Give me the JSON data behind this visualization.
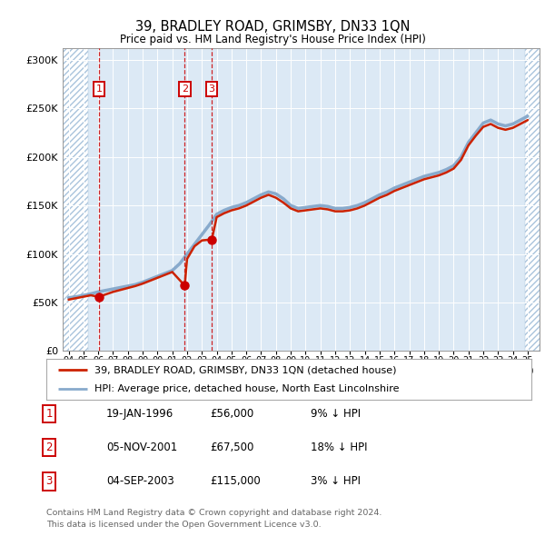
{
  "title": "39, BRADLEY ROAD, GRIMSBY, DN33 1QN",
  "subtitle": "Price paid vs. HM Land Registry's House Price Index (HPI)",
  "ytick_values": [
    0,
    50000,
    100000,
    150000,
    200000,
    250000,
    300000
  ],
  "ylim": [
    0,
    312000
  ],
  "xlim_start": 1993.6,
  "xlim_end": 2025.8,
  "hatch_left_end": 1995.3,
  "hatch_right_start": 2024.8,
  "background_color": "#dce9f5",
  "hatch_color": "#aac4dc",
  "sale_color": "#cc0000",
  "hpi_line_color": "#88aacc",
  "price_line_color": "#cc2200",
  "legend_label_price": "39, BRADLEY ROAD, GRIMSBY, DN33 1QN (detached house)",
  "legend_label_hpi": "HPI: Average price, detached house, North East Lincolnshire",
  "sales": [
    {
      "num": 1,
      "year": 1996.05,
      "price": 56000
    },
    {
      "num": 2,
      "year": 2001.84,
      "price": 67500
    },
    {
      "num": 3,
      "year": 2003.67,
      "price": 115000
    }
  ],
  "table_rows": [
    {
      "num": 1,
      "date": "19-JAN-1996",
      "price": "£56,000",
      "pct": "9% ↓ HPI"
    },
    {
      "num": 2,
      "date": "05-NOV-2001",
      "price": "£67,500",
      "pct": "18% ↓ HPI"
    },
    {
      "num": 3,
      "date": "04-SEP-2003",
      "price": "£115,000",
      "pct": "3% ↓ HPI"
    }
  ],
  "footer_line1": "Contains HM Land Registry data © Crown copyright and database right 2024.",
  "footer_line2": "This data is licensed under the Open Government Licence v3.0.",
  "hpi_years": [
    1994,
    1994.5,
    1995,
    1995.5,
    1996,
    1996.5,
    1997,
    1997.5,
    1998,
    1998.5,
    1999,
    1999.5,
    2000,
    2000.5,
    2001,
    2001.5,
    2002,
    2002.5,
    2003,
    2003.5,
    2004,
    2004.5,
    2005,
    2005.5,
    2006,
    2006.5,
    2007,
    2007.5,
    2008,
    2008.5,
    2009,
    2009.5,
    2010,
    2010.5,
    2011,
    2011.5,
    2012,
    2012.5,
    2013,
    2013.5,
    2014,
    2014.5,
    2015,
    2015.5,
    2016,
    2016.5,
    2017,
    2017.5,
    2018,
    2018.5,
    2019,
    2019.5,
    2020,
    2020.5,
    2021,
    2021.5,
    2022,
    2022.5,
    2023,
    2023.5,
    2024,
    2024.5,
    2025
  ],
  "hpi_vals": [
    55000,
    56000,
    57500,
    59000,
    61000,
    62500,
    64000,
    65500,
    67000,
    68500,
    71000,
    74000,
    77000,
    80000,
    83000,
    90000,
    100000,
    110000,
    120000,
    130000,
    141000,
    145000,
    148000,
    150000,
    153000,
    157000,
    161000,
    164000,
    162000,
    157000,
    150000,
    147000,
    148000,
    149000,
    150000,
    149000,
    147000,
    147000,
    148000,
    150000,
    153000,
    157000,
    161000,
    164000,
    168000,
    171000,
    174000,
    177000,
    180000,
    182000,
    184000,
    187000,
    191000,
    200000,
    215000,
    225000,
    235000,
    238000,
    234000,
    232000,
    234000,
    238000,
    242000
  ],
  "price_years": [
    1994,
    1994.5,
    1995,
    1995.5,
    1996,
    1996.05,
    1997,
    1997.5,
    1998,
    1998.5,
    1999,
    1999.5,
    2000,
    2000.5,
    2001,
    2001.84,
    2002,
    2002.5,
    2003,
    2003.67,
    2004,
    2004.5,
    2005,
    2005.5,
    2006,
    2006.5,
    2007,
    2007.5,
    2008,
    2008.5,
    2009,
    2009.5,
    2010,
    2010.5,
    2011,
    2011.5,
    2012,
    2012.5,
    2013,
    2013.5,
    2014,
    2014.5,
    2015,
    2015.5,
    2016,
    2016.5,
    2017,
    2017.5,
    2018,
    2018.5,
    2019,
    2019.5,
    2020,
    2020.5,
    2021,
    2021.5,
    2022,
    2022.5,
    2023,
    2023.5,
    2024,
    2024.5,
    2025
  ],
  "price_vals": [
    53000,
    54500,
    56000,
    57500,
    56000,
    56000,
    61000,
    63000,
    65000,
    67000,
    69500,
    72500,
    75500,
    78500,
    81500,
    67500,
    95000,
    108000,
    114000,
    115000,
    138000,
    142000,
    145000,
    147000,
    150000,
    154000,
    158000,
    161000,
    158000,
    153000,
    147000,
    144000,
    145000,
    146000,
    147000,
    146000,
    144000,
    144000,
    145000,
    147000,
    150000,
    154000,
    158000,
    161000,
    165000,
    168000,
    171000,
    174000,
    177000,
    179000,
    181000,
    184000,
    188000,
    197000,
    212000,
    222000,
    231000,
    234000,
    230000,
    228000,
    230000,
    234000,
    238000
  ]
}
